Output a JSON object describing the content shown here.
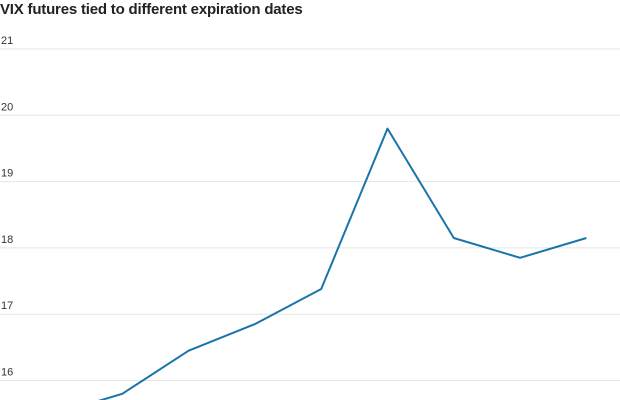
{
  "chart_data": {
    "type": "line",
    "title": "VIX futures tied to different expiration dates",
    "xlabel": "",
    "ylabel": "",
    "ylim": [
      15.7,
      21.5
    ],
    "yticks": [
      16,
      17,
      18,
      19,
      20,
      21
    ],
    "grid": true,
    "legend": "none",
    "series": [
      {
        "color": "#1a74a8",
        "values": [
          15.5,
          15.8,
          16.45,
          16.85,
          17.38,
          19.8,
          18.15,
          17.85,
          18.15
        ]
      }
    ]
  }
}
